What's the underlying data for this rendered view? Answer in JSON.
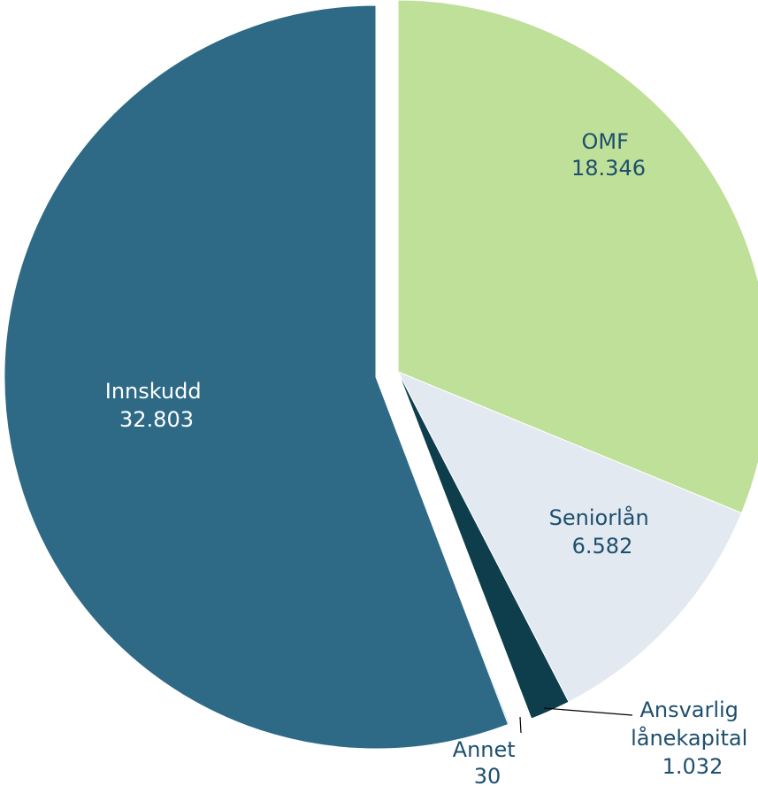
{
  "chart_data": {
    "type": "pie",
    "title": "",
    "slices": [
      {
        "label": "OMF",
        "value_text": "18.346",
        "value": 18346,
        "color": "#bfe099",
        "text_color": "#1d4f6e",
        "exploded": false
      },
      {
        "label": "Seniorlån",
        "value_text": "6.582",
        "value": 6582,
        "color": "#e2e9f0",
        "text_color": "#1d4f6e",
        "exploded": false
      },
      {
        "label": "Ansvarlig lånekapital",
        "value_text": "1.032",
        "value": 1032,
        "color": "#0e3d4c",
        "text_color": "#1d4f6e",
        "exploded": false
      },
      {
        "label": "Annet",
        "value_text": "30",
        "value": 30,
        "color": "#3ea3c4",
        "text_color": "#1d4f6e",
        "exploded": true
      },
      {
        "label": "Innskudd",
        "value_text": "32.803",
        "value": 32803,
        "color": "#2e6a86",
        "text_color": "#ffffff",
        "exploded": true
      }
    ]
  },
  "labels": {
    "omf": {
      "line1": "OMF",
      "line2": "18.346"
    },
    "senior": {
      "line1": "Seniorlån",
      "line2": "6.582"
    },
    "ansvarlig": {
      "line1": "Ansvarlig",
      "line2": "lånekapital",
      "line3": "1.032"
    },
    "annet": {
      "line1": "Annet",
      "line2": "30"
    },
    "innskudd": {
      "line1": "Innskudd",
      "line2": "32.803"
    }
  }
}
